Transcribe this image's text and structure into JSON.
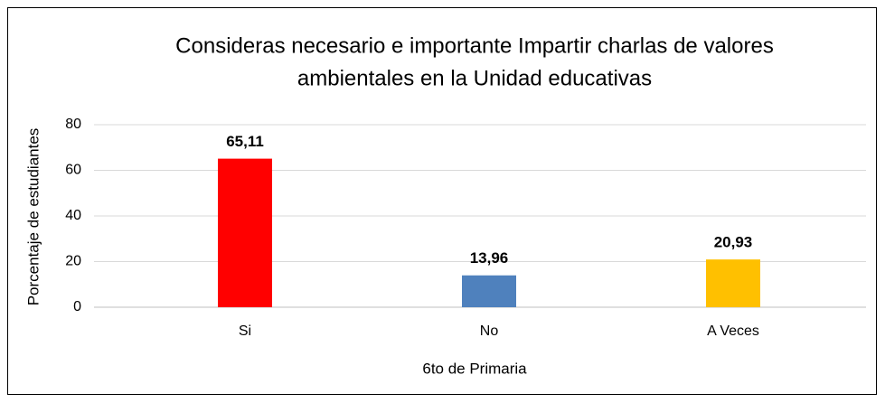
{
  "chart_data": {
    "type": "bar",
    "title": [
      "Consideras necesario e importante Impartir charlas de valores",
      "ambientales en la Unidad educativas"
    ],
    "x_label": "6to de Primaria",
    "y_label": "Porcentaje de estudiantes",
    "categories": [
      "Si",
      "No",
      "A Veces"
    ],
    "values": [
      65.11,
      13.96,
      20.93
    ],
    "value_labels": [
      "65,11",
      "13,96",
      "20,93"
    ],
    "colors": [
      "#ff0000",
      "#4f81bd",
      "#ffc000"
    ],
    "ylim": [
      0,
      80
    ],
    "yticks": [
      0,
      20,
      40,
      60,
      80
    ],
    "grid": true
  }
}
